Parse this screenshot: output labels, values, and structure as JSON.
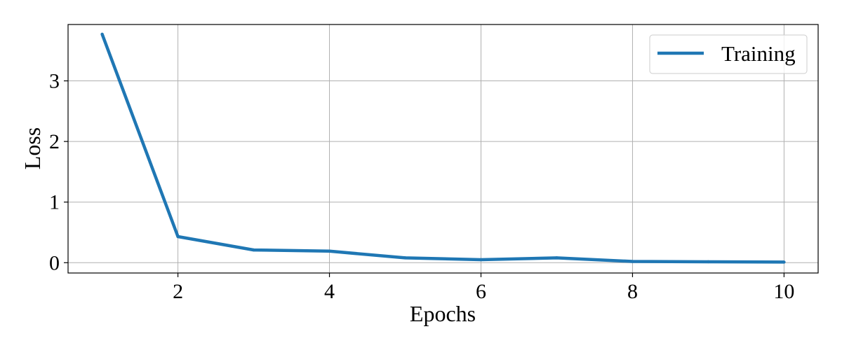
{
  "chart_data": {
    "type": "line",
    "xlabel": "Epochs",
    "ylabel": "Loss",
    "xlim": [
      0.55,
      10.45
    ],
    "ylim": [
      -0.17,
      3.93
    ],
    "xticks": [
      2,
      4,
      6,
      8,
      10
    ],
    "yticks": [
      0,
      1,
      2,
      3
    ],
    "xtick_labels": [
      "2",
      "4",
      "6",
      "8",
      "10"
    ],
    "ytick_labels": [
      "0",
      "1",
      "2",
      "3"
    ],
    "grid": true,
    "legend_position": "top-right",
    "series": [
      {
        "name": "Training",
        "color": "#1f77b4",
        "x": [
          1,
          2,
          3,
          4,
          5,
          6,
          7,
          8,
          9,
          10
        ],
        "y": [
          3.77,
          0.43,
          0.21,
          0.19,
          0.08,
          0.05,
          0.08,
          0.02,
          0.015,
          0.01
        ]
      }
    ]
  }
}
